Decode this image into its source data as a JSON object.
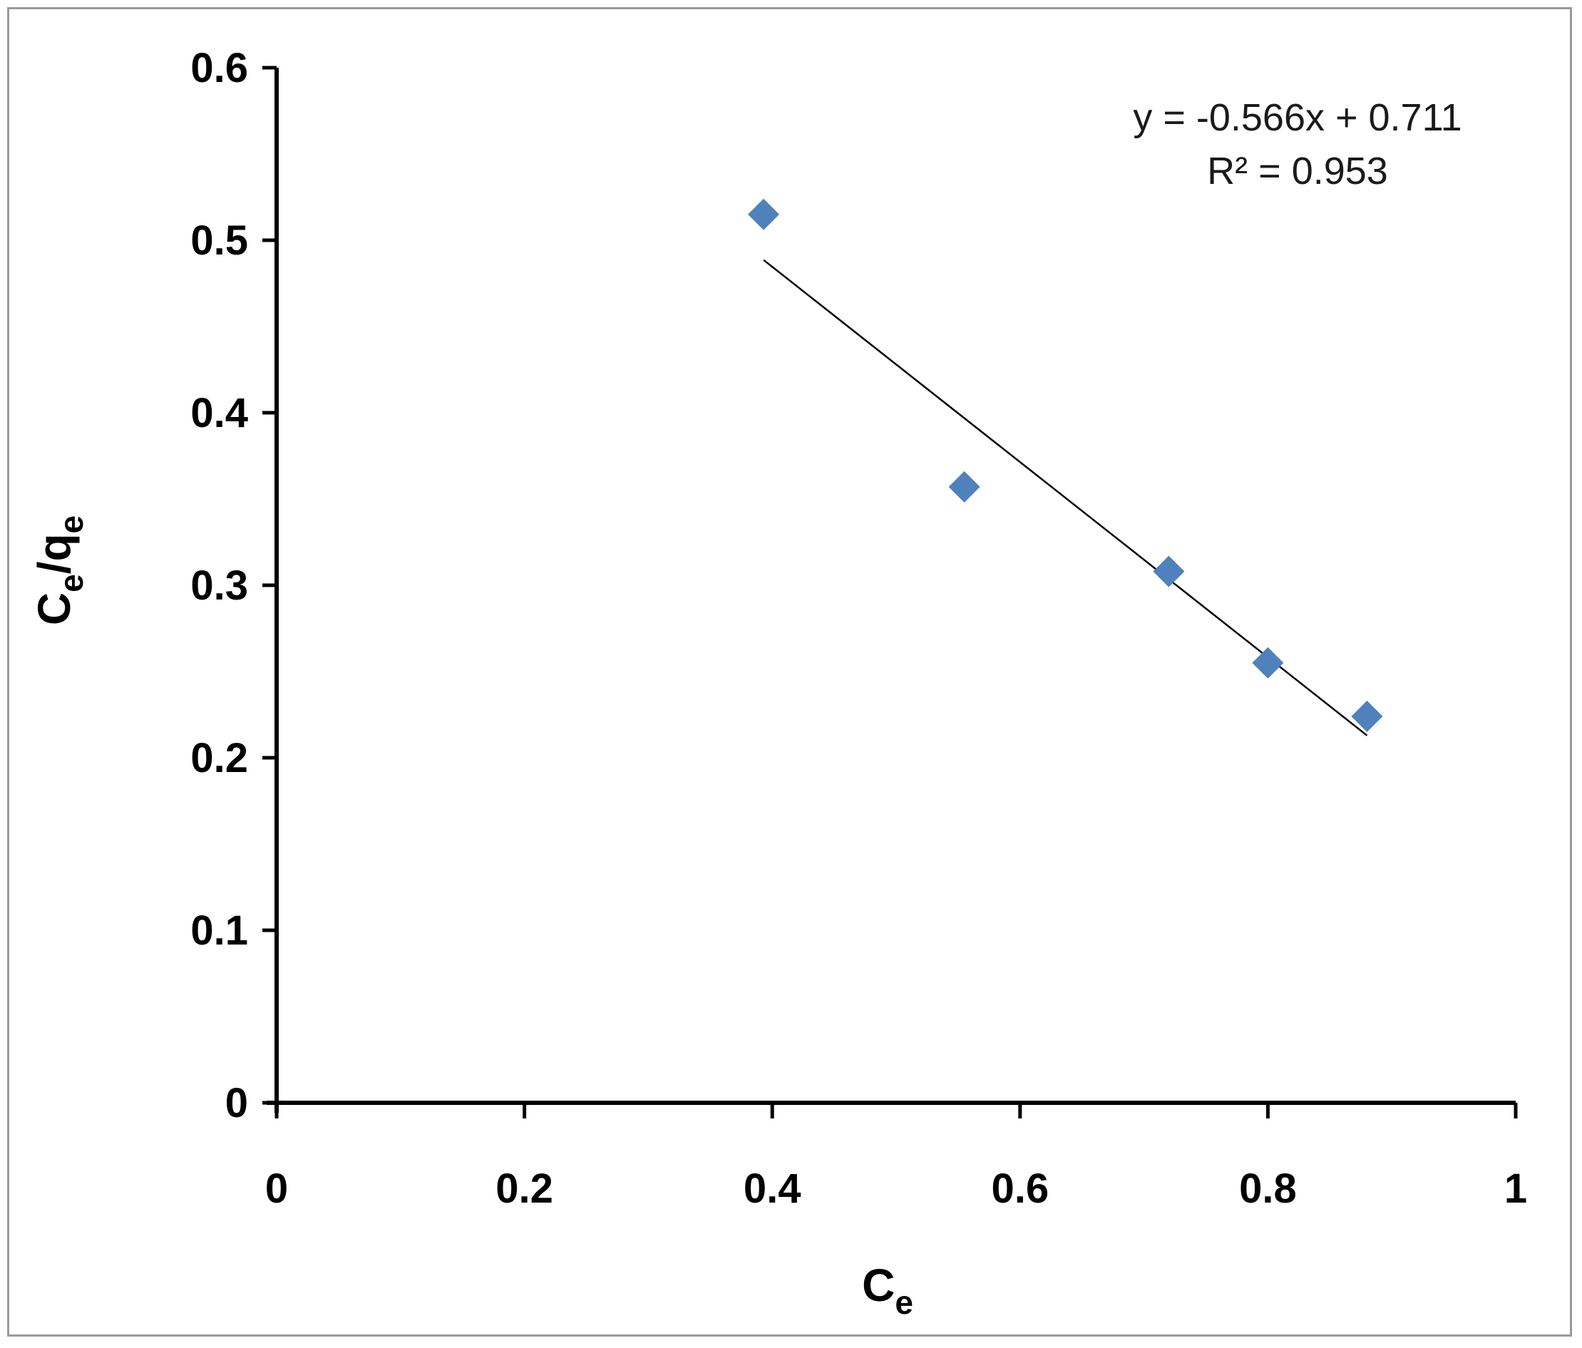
{
  "chart_data": {
    "type": "scatter",
    "title": "",
    "xlabel": {
      "main": "C",
      "sub": "e"
    },
    "ylabel": {
      "c": "C",
      "c_sub": "e",
      "slash": "/",
      "q": "q",
      "q_sub": "e"
    },
    "xlim": [
      0,
      1
    ],
    "ylim": [
      0,
      0.6
    ],
    "xticks": [
      0,
      0.2,
      0.4,
      0.6,
      0.8,
      1
    ],
    "xtick_labels": [
      "0",
      "0.2",
      "0.4",
      "0.6",
      "0.8",
      "1"
    ],
    "yticks": [
      0,
      0.1,
      0.2,
      0.3,
      0.4,
      0.5,
      0.6
    ],
    "ytick_labels": [
      "0",
      "0.1",
      "0.2",
      "0.3",
      "0.4",
      "0.5",
      "0.6"
    ],
    "grid": false,
    "series": [
      {
        "points": [
          {
            "x": 0.393,
            "y": 0.515
          },
          {
            "x": 0.555,
            "y": 0.357
          },
          {
            "x": 0.72,
            "y": 0.308
          },
          {
            "x": 0.8,
            "y": 0.255
          },
          {
            "x": 0.88,
            "y": 0.224
          }
        ],
        "marker": "diamond",
        "color": "#4F81BD"
      }
    ],
    "trendline": {
      "slope": -0.566,
      "intercept": 0.711,
      "x_range": [
        0.393,
        0.88
      ],
      "color": "#000000"
    },
    "annotations": {
      "equation": "y = -0.566x + 0.711",
      "r_squared": "R² = 0.953"
    }
  }
}
